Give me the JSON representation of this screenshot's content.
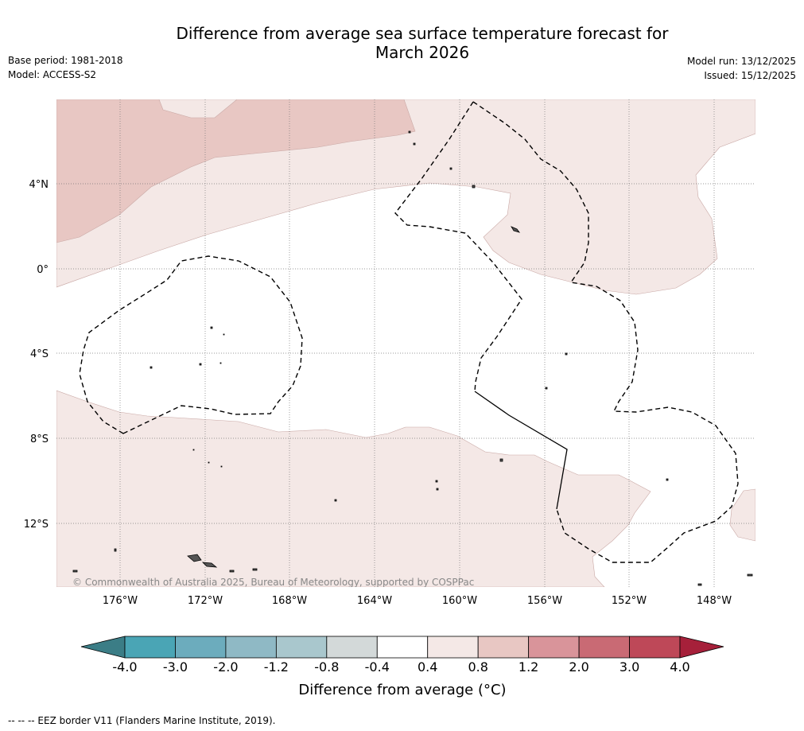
{
  "title": {
    "line1": "Difference from average sea surface temperature forecast for",
    "line2": "March 2026"
  },
  "meta": {
    "base_period": "Base period: 1981-2018",
    "model": "Model: ACCESS-S2",
    "model_run": "Model run: 13/12/2025",
    "issued": "Issued: 15/12/2025"
  },
  "map": {
    "lat_labels": [
      "4°N",
      "0°",
      "4°S",
      "8°S",
      "12°S"
    ],
    "lon_labels": [
      "176°W",
      "172°W",
      "168°W",
      "164°W",
      "160°W",
      "156°W",
      "152°W",
      "148°W"
    ],
    "copyright": "© Commonwealth of Australia 2025, Bureau of Meteorology, supported by COSPPac",
    "colors": {
      "anomaly_0_4_0_8": "#f4e8e6",
      "anomaly_0_8_1_2": "#e8c7c3",
      "eez_line": "#000000",
      "grid": "#666666"
    }
  },
  "colorbar": {
    "ticks": [
      "-4.0",
      "-3.0",
      "-2.0",
      "-1.2",
      "-0.8",
      "-0.4",
      "0.4",
      "0.8",
      "1.2",
      "2.0",
      "3.0",
      "4.0"
    ],
    "colors": [
      "#3b7d86",
      "#4aa5b5",
      "#6cacbd",
      "#8fb9c5",
      "#a9c7cd",
      "#d3d9d9",
      "#ffffff",
      "#f4e8e6",
      "#e8c7c3",
      "#d9949a",
      "#c96a74",
      "#be4858",
      "#a6203a"
    ],
    "label": "Difference from average (°C)"
  },
  "footer": "--  --  -- EEZ border V11 (Flanders Marine Institute, 2019)."
}
